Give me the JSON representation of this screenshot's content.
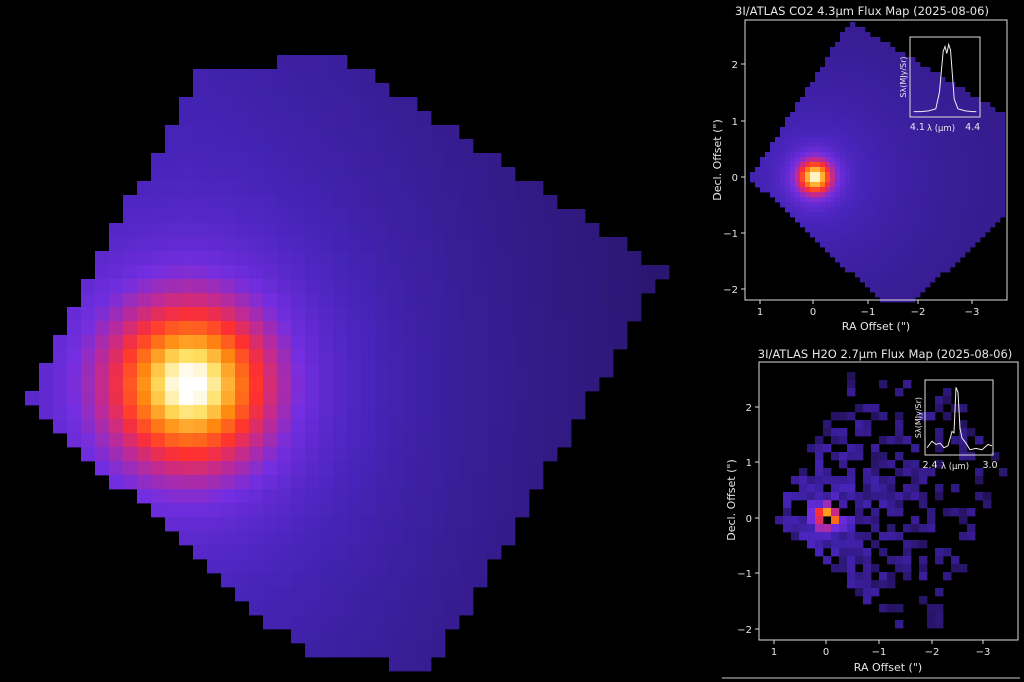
{
  "chart_data": [
    {
      "type": "heatmap",
      "title": "",
      "description_colormap": "black-purple-red-orange-yellow-white",
      "peak_position": "left-center"
    },
    {
      "type": "heatmap",
      "title": "3I/ATLAS CO2 4.3µm Flux Map (2025-08-06)",
      "xlabel": "RA Offset (\")",
      "ylabel": "Decl. Offset (\")",
      "xticks": [
        "1",
        "0",
        "−1",
        "−2",
        "−3"
      ],
      "yticks": [
        "2",
        "1",
        "0",
        "−1",
        "−2"
      ],
      "xlim": [
        1.25,
        -3.6
      ],
      "ylim": [
        -2.2,
        2.8
      ],
      "peak": [
        0,
        0
      ],
      "inset": {
        "type": "line",
        "xlabel": "λ (µm)",
        "ylabel": "Sλ(MJy/Sr)",
        "xticks": [
          "4.1",
          "4.4"
        ],
        "x": [
          4.08,
          4.12,
          4.16,
          4.2,
          4.22,
          4.24,
          4.25,
          4.26,
          4.27,
          4.28,
          4.29,
          4.3,
          4.32,
          4.36,
          4.4,
          4.42
        ],
        "y": [
          0.02,
          0.02,
          0.03,
          0.06,
          0.3,
          0.88,
          0.95,
          0.85,
          0.98,
          0.9,
          0.55,
          0.2,
          0.06,
          0.03,
          0.02,
          0.02
        ]
      }
    },
    {
      "type": "heatmap",
      "title": "3I/ATLAS H2O 2.7µm Flux Map (2025-08-06)",
      "xlabel": "RA Offset (\")",
      "ylabel": "Decl. Offset (\")",
      "xticks": [
        "1",
        "0",
        "−1",
        "−2",
        "−3"
      ],
      "yticks": [
        "2",
        "1",
        "0",
        "−1",
        "−2"
      ],
      "xlim": [
        1.3,
        -3.6
      ],
      "ylim": [
        -2.2,
        2.8
      ],
      "peak": [
        0,
        0
      ],
      "inset": {
        "type": "line",
        "xlabel": "λ (µm)",
        "ylabel": "Sλ(MJy/Sr)",
        "xticks": [
          "2.4",
          "3.0"
        ],
        "x": [
          2.37,
          2.42,
          2.46,
          2.5,
          2.54,
          2.58,
          2.62,
          2.64,
          2.66,
          2.68,
          2.7,
          2.72,
          2.76,
          2.8,
          2.86,
          2.92,
          2.98,
          3.02
        ],
        "y": [
          0.05,
          0.15,
          0.1,
          0.12,
          0.05,
          0.08,
          0.3,
          0.28,
          0.98,
          0.9,
          0.35,
          0.2,
          0.12,
          0.02,
          0.04,
          0.02,
          0.1,
          0.08
        ]
      }
    }
  ]
}
